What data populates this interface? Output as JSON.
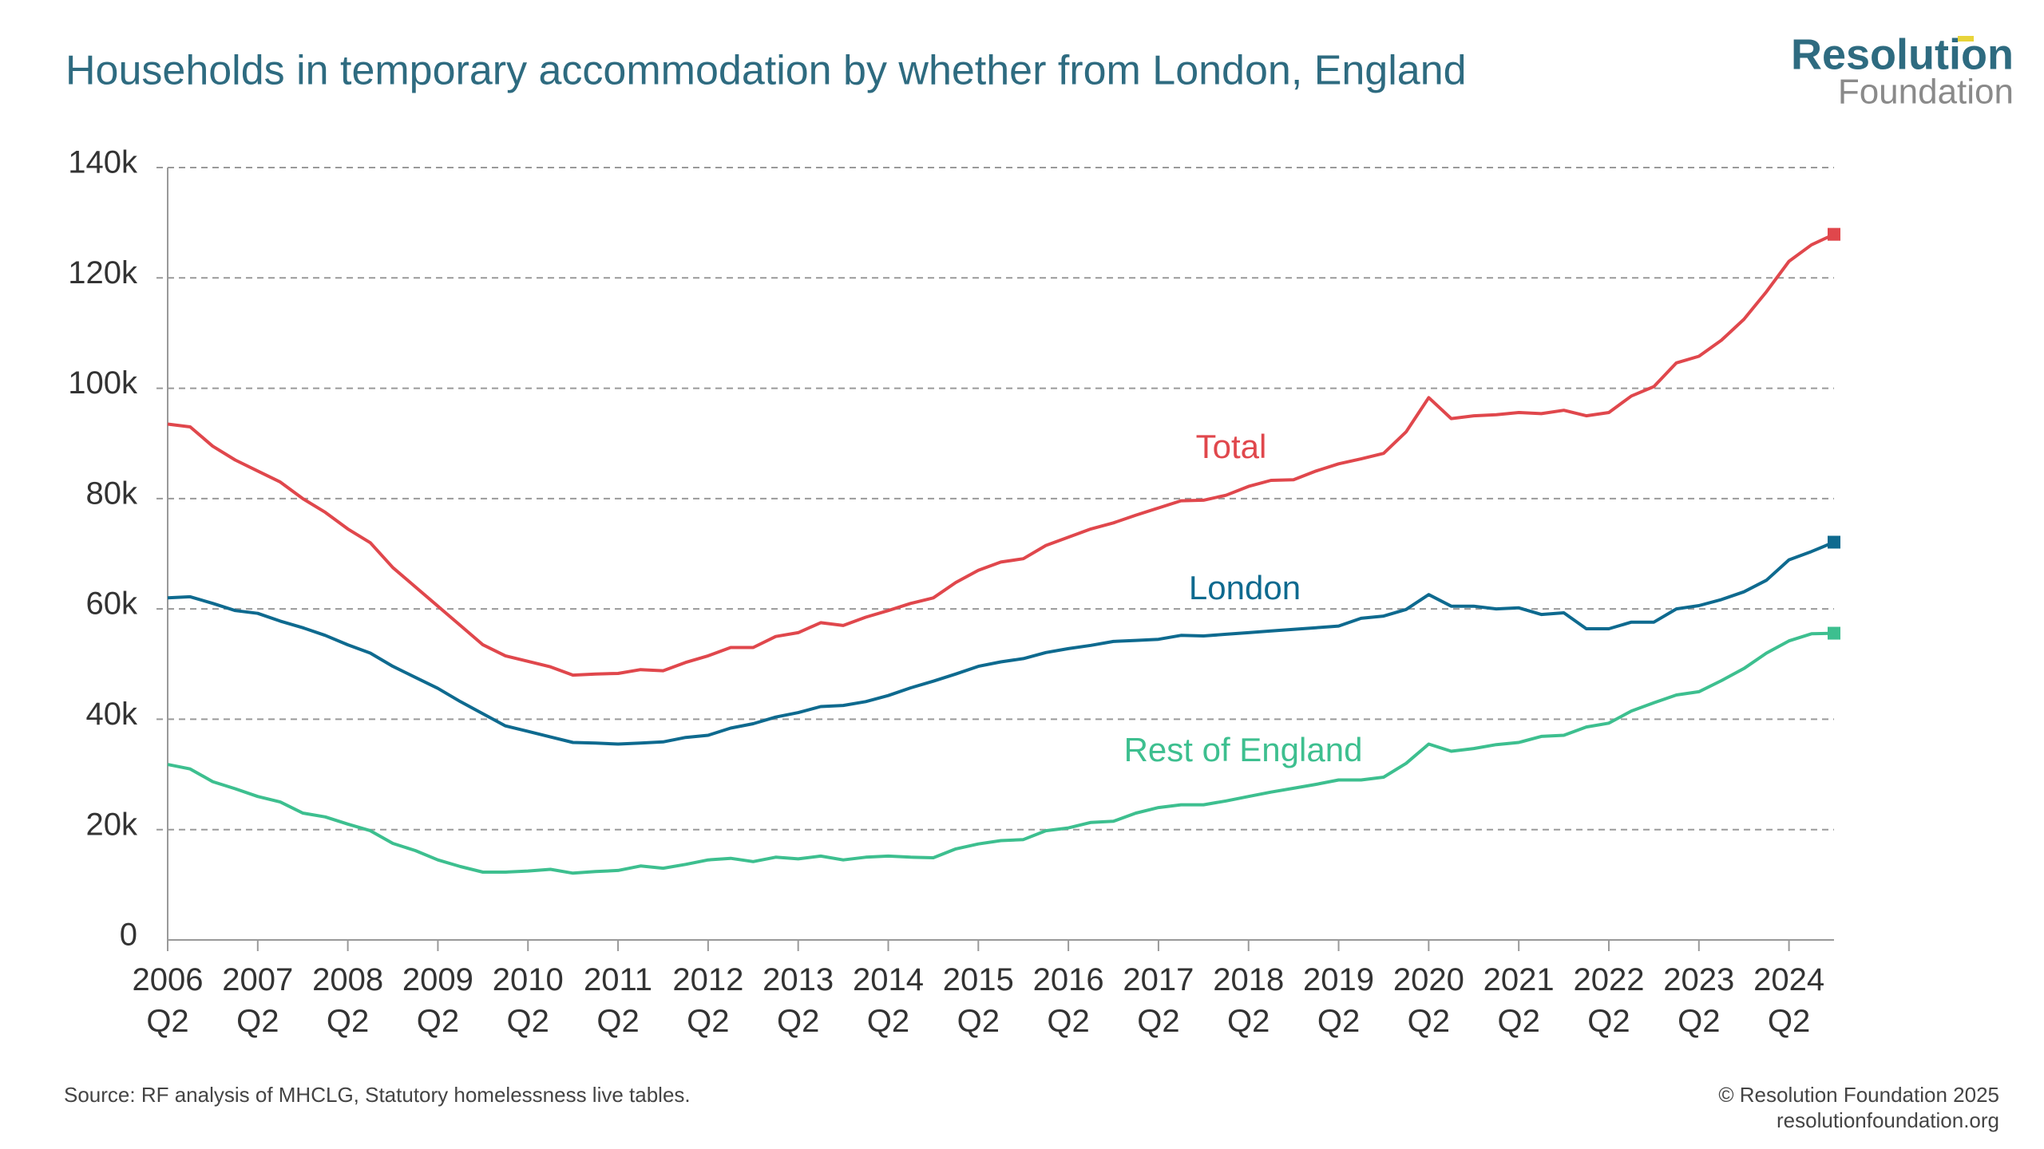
{
  "chart_data": {
    "type": "line",
    "title": "Households in temporary accommodation by whether from London, England",
    "categories": [
      "2006\nQ2",
      null,
      null,
      null,
      "2007\nQ2",
      null,
      null,
      null,
      "2008\nQ2",
      null,
      null,
      null,
      "2009\nQ2",
      null,
      null,
      null,
      "2010\nQ2",
      null,
      null,
      null,
      "2011\nQ2",
      null,
      null,
      null,
      "2012\nQ2",
      null,
      null,
      null,
      "2013\nQ2",
      null,
      null,
      null,
      "2014\nQ2",
      null,
      null,
      null,
      "2015\nQ2",
      null,
      null,
      null,
      "2016\nQ2",
      null,
      null,
      null,
      "2017\nQ2",
      null,
      null,
      null,
      "2018\nQ2",
      null,
      null,
      null,
      "2019\nQ2",
      null,
      null,
      null,
      "2020\nQ2",
      null,
      null,
      null,
      "2021\nQ2",
      null,
      null,
      null,
      "2022\nQ2",
      null,
      null,
      null,
      "2023\nQ2",
      null,
      null,
      null,
      "2024\nQ2",
      null,
      null
    ],
    "series": [
      {
        "name": "Total",
        "color": "#e0474c",
        "values": [
          93.5,
          93,
          89.5,
          87,
          85,
          83,
          80,
          77.5,
          74.5,
          72,
          67.5,
          64,
          60.5,
          57,
          53.5,
          51.5,
          50.5,
          49.5,
          48,
          48.2,
          48.3,
          49,
          48.8,
          50.3,
          51.5,
          53,
          53,
          55,
          55.7,
          57.5,
          57,
          58.5,
          59.7,
          61,
          62,
          64.8,
          67,
          68.5,
          69.1,
          71.5,
          73,
          74.5,
          75.6,
          77,
          78.3,
          79.6,
          79.7,
          80.6,
          82.2,
          83.3,
          83.4,
          85,
          86.3,
          87.2,
          88.2,
          92.1,
          98.3,
          94.5,
          95,
          95.2,
          95.6,
          95.4,
          96,
          95,
          95.6,
          98.6,
          100.3,
          104.6,
          105.8,
          108.7,
          112.5,
          117.5,
          123,
          126,
          127.9
        ]
      },
      {
        "name": "London",
        "color": "#0e6a8f",
        "values": [
          62,
          62.2,
          61,
          59.7,
          59.2,
          57.8,
          56.6,
          55.2,
          53.5,
          52,
          49.6,
          47.6,
          45.6,
          43.2,
          41,
          38.8,
          37.8,
          36.8,
          35.8,
          35.7,
          35.5,
          35.7,
          35.9,
          36.7,
          37.1,
          38.4,
          39.2,
          40.4,
          41.2,
          42.3,
          42.5,
          43.2,
          44.3,
          45.7,
          46.9,
          48.2,
          49.6,
          50.4,
          51,
          52.1,
          52.8,
          53.4,
          54.1,
          54.3,
          54.5,
          55.2,
          55.1,
          55.4,
          55.7,
          56,
          56.3,
          56.6,
          56.9,
          58.3,
          58.7,
          59.9,
          62.6,
          60.5,
          60.5,
          60,
          60.2,
          59,
          59.3,
          56.4,
          56.4,
          57.6,
          57.6,
          60,
          60.6,
          61.7,
          63.1,
          65.2,
          68.9,
          70.4,
          72.1
        ]
      },
      {
        "name": "Rest of England",
        "color": "#3dbf8f",
        "values": [
          31.8,
          31,
          28.7,
          27.4,
          26,
          25,
          23,
          22.3,
          21,
          19.8,
          17.5,
          16.2,
          14.5,
          13.3,
          12.3,
          12.3,
          12.5,
          12.8,
          12.1,
          12.4,
          12.6,
          13.4,
          13,
          13.7,
          14.5,
          14.8,
          14.2,
          15,
          14.7,
          15.2,
          14.5,
          15,
          15.2,
          15,
          14.9,
          16.5,
          17.4,
          18,
          18.2,
          19.8,
          20.3,
          21.3,
          21.5,
          23,
          24,
          24.5,
          24.5,
          25.2,
          26,
          26.8,
          27.5,
          28.2,
          29,
          29,
          29.5,
          32,
          35.5,
          34.2,
          34.7,
          35.4,
          35.8,
          36.9,
          37.1,
          38.6,
          39.3,
          41.5,
          43,
          44.4,
          45,
          47,
          49.2,
          52,
          54.2,
          55.5,
          55.6
        ]
      }
    ],
    "ylim": [
      0,
      140
    ],
    "yticks": [
      0,
      {
        "value": 20,
        "label": "20k"
      },
      {
        "value": 40,
        "label": "40k"
      },
      {
        "value": 60,
        "label": "60k"
      },
      {
        "value": 80,
        "label": "80k"
      },
      {
        "value": 100,
        "label": "100k"
      },
      {
        "value": 120,
        "label": "120k"
      },
      {
        "value": 140,
        "label": "140k"
      }
    ],
    "grid": true
  },
  "logo": {
    "line1": "Resolution",
    "line2": "Foundation"
  },
  "source": "Source: RF analysis of MHCLG, Statutory homelessness live tables.",
  "copyright": [
    "© Resolution Foundation 2025",
    "resolutionfoundation.org"
  ]
}
